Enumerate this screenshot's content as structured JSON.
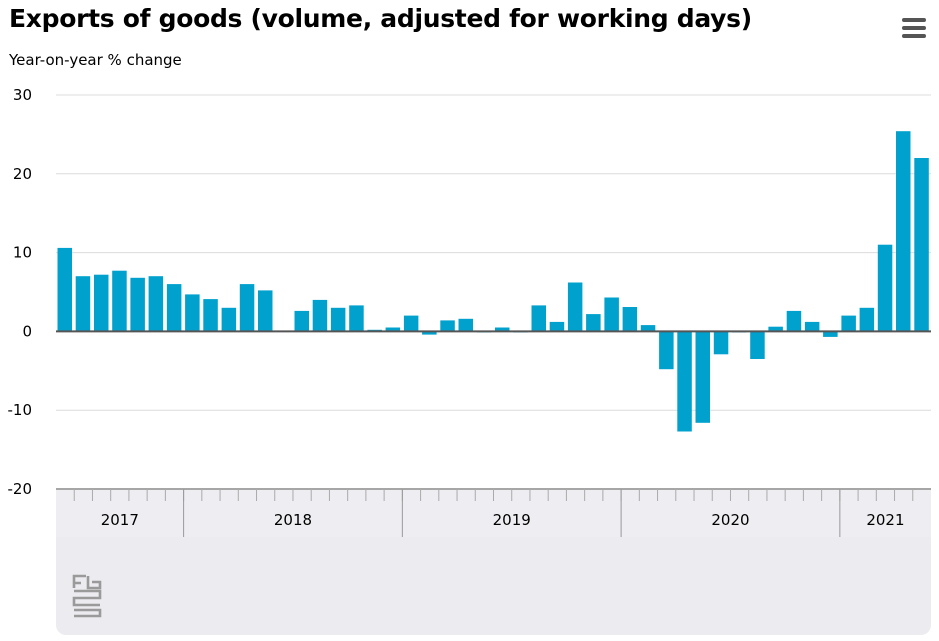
{
  "chart_data": {
    "type": "bar",
    "title": "Exports of goods (volume, adjusted for working days)",
    "subtitle": "Year-on-year % change",
    "ylim": [
      -20,
      30
    ],
    "yticks": [
      30,
      20,
      10,
      0,
      -10,
      -20
    ],
    "grid": true,
    "bar_color": "#00a1cd",
    "year_labels": [
      "2017",
      "2018",
      "2019",
      "2020",
      "2021"
    ],
    "months_per_year": [
      7,
      12,
      12,
      12,
      5
    ],
    "values": [
      10.6,
      7.0,
      7.2,
      7.7,
      6.8,
      7.0,
      6.0,
      4.7,
      4.1,
      3.0,
      6.0,
      5.2,
      0.1,
      2.6,
      4.0,
      3.0,
      3.3,
      0.2,
      0.5,
      2.0,
      -0.4,
      1.4,
      1.6,
      -0.1,
      0.5,
      -0.1,
      3.3,
      1.2,
      6.2,
      2.2,
      4.3,
      3.1,
      0.8,
      -4.8,
      -12.7,
      -11.6,
      -2.9,
      0.0,
      -3.5,
      0.6,
      2.6,
      1.2,
      -0.7,
      2.0,
      3.0,
      11.0,
      25.4,
      22.0
    ]
  },
  "menu_icon": "hamburger-menu-icon",
  "logo_icon": "cbs-logo-icon"
}
